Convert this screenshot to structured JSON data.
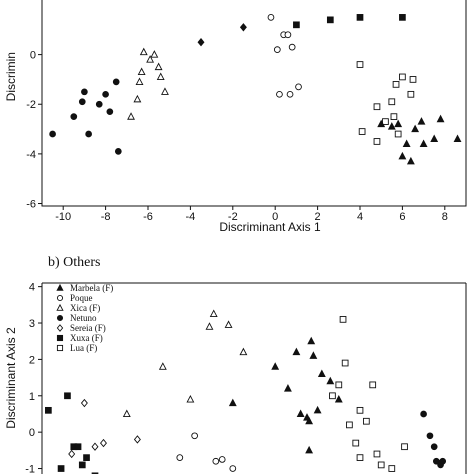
{
  "chart_data": [
    {
      "type": "scatter",
      "panel_label": "",
      "xlabel": "Discriminant Axis 1",
      "ylabel": "Discrimin",
      "xlim": [
        -11,
        9
      ],
      "ylim": [
        -6.1,
        2.2
      ],
      "xticks": [
        -10,
        -8,
        -6,
        -4,
        -2,
        0,
        2,
        4,
        6,
        8
      ],
      "yticks": [
        0,
        -2,
        -4,
        -6
      ],
      "grid": false,
      "series": [
        {
          "marker": "filled-circle",
          "points": [
            [
              -10.5,
              -3.2
            ],
            [
              -9.5,
              -2.5
            ],
            [
              -9.1,
              -1.9
            ],
            [
              -9.0,
              -1.5
            ],
            [
              -8.8,
              -3.2
            ],
            [
              -8.3,
              -2.0
            ],
            [
              -8.0,
              -1.6
            ],
            [
              -7.8,
              -2.3
            ],
            [
              -7.5,
              -1.1
            ],
            [
              -7.4,
              -3.9
            ]
          ]
        },
        {
          "marker": "open-triangle",
          "points": [
            [
              -6.8,
              -2.5
            ],
            [
              -6.5,
              -1.8
            ],
            [
              -6.4,
              -1.1
            ],
            [
              -6.3,
              -0.7
            ],
            [
              -6.2,
              0.1
            ],
            [
              -5.9,
              -0.2
            ],
            [
              -5.7,
              0.0
            ],
            [
              -5.5,
              -0.5
            ],
            [
              -5.4,
              -0.9
            ],
            [
              -5.2,
              -1.5
            ]
          ]
        },
        {
          "marker": "filled-diamond",
          "points": [
            [
              -3.5,
              0.5
            ],
            [
              -1.5,
              1.1
            ]
          ]
        },
        {
          "marker": "open-circle",
          "points": [
            [
              -0.2,
              1.5
            ],
            [
              0.1,
              0.2
            ],
            [
              0.2,
              -1.6
            ],
            [
              0.4,
              0.8
            ],
            [
              0.6,
              0.8
            ],
            [
              0.7,
              -1.6
            ],
            [
              0.8,
              0.3
            ],
            [
              1.1,
              -1.3
            ]
          ]
        },
        {
          "marker": "filled-square",
          "points": [
            [
              1.0,
              1.2
            ],
            [
              2.6,
              1.4
            ],
            [
              4.0,
              1.5
            ],
            [
              6.0,
              1.5
            ]
          ]
        },
        {
          "marker": "open-square",
          "points": [
            [
              4.0,
              -0.4
            ],
            [
              4.1,
              -3.1
            ],
            [
              4.8,
              -2.1
            ],
            [
              4.8,
              -3.5
            ],
            [
              5.2,
              -2.7
            ],
            [
              5.5,
              -1.9
            ],
            [
              5.6,
              -2.5
            ],
            [
              5.7,
              -1.2
            ],
            [
              5.8,
              -3.2
            ],
            [
              6.0,
              -0.9
            ],
            [
              6.4,
              -1.6
            ],
            [
              6.5,
              -1.0
            ]
          ]
        },
        {
          "marker": "filled-triangle",
          "points": [
            [
              5.0,
              -2.8
            ],
            [
              5.5,
              -2.9
            ],
            [
              5.8,
              -2.8
            ],
            [
              6.0,
              -4.1
            ],
            [
              6.2,
              -3.6
            ],
            [
              6.4,
              -4.3
            ],
            [
              6.6,
              -3.0
            ],
            [
              6.9,
              -2.7
            ],
            [
              7.0,
              -3.6
            ],
            [
              7.5,
              -3.4
            ],
            [
              7.8,
              -2.6
            ],
            [
              8.6,
              -3.4
            ]
          ]
        }
      ]
    },
    {
      "type": "scatter",
      "panel_label": "b) Others",
      "xlabel": "",
      "ylabel": "Discriminant Axis 2",
      "xlim": [
        -11,
        9
      ],
      "ylim": [
        -1.15,
        4.1
      ],
      "xticks": [],
      "yticks": [
        4,
        3,
        2,
        1,
        0,
        -1
      ],
      "grid": false,
      "legend_position": "top-left",
      "series": [
        {
          "name": "Marbela (F)",
          "marker": "filled-triangle",
          "points": [
            [
              -2.0,
              0.8
            ],
            [
              0.0,
              1.8
            ],
            [
              0.6,
              1.2
            ],
            [
              1.0,
              2.2
            ],
            [
              1.2,
              0.5
            ],
            [
              1.5,
              0.4
            ],
            [
              1.6,
              0.3
            ],
            [
              1.6,
              -0.5
            ],
            [
              1.7,
              2.5
            ],
            [
              1.8,
              2.1
            ],
            [
              2.0,
              0.6
            ],
            [
              2.2,
              1.6
            ],
            [
              2.6,
              1.4
            ],
            [
              3.0,
              0.9
            ]
          ]
        },
        {
          "name": "Poque",
          "marker": "open-circle",
          "points": [
            [
              -4.5,
              -0.7
            ],
            [
              -3.8,
              -0.1
            ],
            [
              -2.8,
              -0.8
            ],
            [
              -2.5,
              -0.75
            ],
            [
              -2.0,
              -1.0
            ]
          ]
        },
        {
          "name": "Xica (F)",
          "marker": "open-triangle",
          "points": [
            [
              -7.0,
              0.5
            ],
            [
              -5.3,
              1.8
            ],
            [
              -4.0,
              0.9
            ],
            [
              -3.1,
              2.9
            ],
            [
              -2.9,
              3.25
            ],
            [
              -2.2,
              2.95
            ],
            [
              -1.5,
              2.2
            ]
          ]
        },
        {
          "name": "Netuno",
          "marker": "filled-circle",
          "points": [
            [
              7.0,
              0.5
            ],
            [
              7.3,
              -0.1
            ],
            [
              7.5,
              -0.4
            ],
            [
              7.6,
              -0.8
            ],
            [
              7.8,
              -0.9
            ],
            [
              7.9,
              -0.8
            ]
          ]
        },
        {
          "name": "Sereia (F)",
          "marker": "open-diamond",
          "points": [
            [
              -9.6,
              -0.6
            ],
            [
              -9.0,
              0.8
            ],
            [
              -8.5,
              -0.4
            ],
            [
              -8.1,
              -0.3
            ],
            [
              -6.5,
              -0.2
            ]
          ]
        },
        {
          "name": "Xuxa (F)",
          "marker": "filled-square",
          "points": [
            [
              -10.7,
              0.6
            ],
            [
              -10.1,
              -1.0
            ],
            [
              -9.8,
              1.0
            ],
            [
              -9.5,
              -0.4
            ],
            [
              -9.3,
              -0.4
            ],
            [
              -9.1,
              -0.9
            ],
            [
              -8.9,
              -0.7
            ],
            [
              -8.5,
              -1.2
            ]
          ]
        },
        {
          "name": "Lua (F)",
          "marker": "open-square",
          "points": [
            [
              2.7,
              1.0
            ],
            [
              3.0,
              1.3
            ],
            [
              3.2,
              3.1
            ],
            [
              3.3,
              1.9
            ],
            [
              3.5,
              0.2
            ],
            [
              3.8,
              -0.3
            ],
            [
              4.0,
              -0.7
            ],
            [
              4.0,
              0.6
            ],
            [
              4.3,
              0.3
            ],
            [
              4.6,
              1.3
            ],
            [
              4.8,
              -0.6
            ],
            [
              5.0,
              -0.9
            ],
            [
              5.5,
              -1.0
            ],
            [
              6.1,
              -0.4
            ]
          ]
        }
      ]
    }
  ]
}
